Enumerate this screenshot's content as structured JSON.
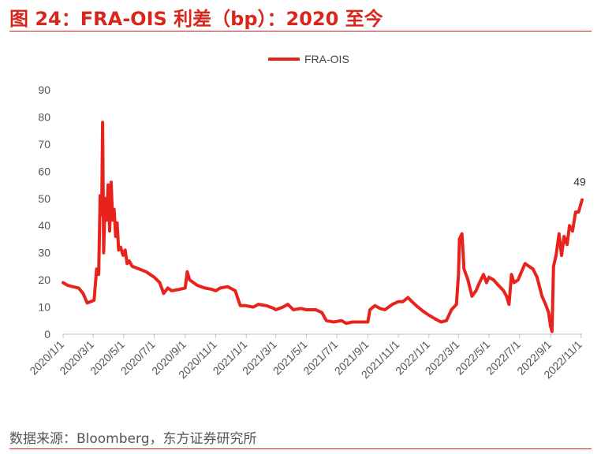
{
  "title": "图 24：FRA-OIS 利差（bp）：2020 至今",
  "source": "数据来源：Bloomberg，东方证券研究所",
  "chart_data": {
    "type": "line",
    "title": "图 24：FRA-OIS 利差（bp）：2020 至今",
    "ylim": [
      0,
      90
    ],
    "yticks": [
      0,
      10,
      20,
      30,
      40,
      50,
      60,
      70,
      80,
      90
    ],
    "xticks": [
      "2020/1/1",
      "2020/3/1",
      "2020/5/1",
      "2020/7/1",
      "2020/9/1",
      "2020/11/1",
      "2021/1/1",
      "2021/3/1",
      "2021/5/1",
      "2021/7/1",
      "2021/9/1",
      "2021/11/1",
      "2022/1/1",
      "2022/3/1",
      "2022/5/1",
      "2022/7/1",
      "2022/9/1",
      "2022/11/1"
    ],
    "legend": {
      "position": "top-center",
      "entries": [
        "FRA-OIS"
      ]
    },
    "series_color": "#e8231b",
    "annotation": {
      "text": "49",
      "x": "2022/11/3",
      "y": 49.5
    },
    "series": [
      {
        "name": "FRA-OIS",
        "points": [
          [
            "2020/1/1",
            19
          ],
          [
            "2020/1/10",
            18
          ],
          [
            "2020/1/20",
            17.5
          ],
          [
            "2020/2/1",
            17
          ],
          [
            "2020/2/10",
            15
          ],
          [
            "2020/2/18",
            11.5
          ],
          [
            "2020/2/25",
            12
          ],
          [
            "2020/3/3",
            12.5
          ],
          [
            "2020/3/8",
            24
          ],
          [
            "2020/3/12",
            22
          ],
          [
            "2020/3/15",
            51
          ],
          [
            "2020/3/18",
            44
          ],
          [
            "2020/3/20",
            78
          ],
          [
            "2020/3/22",
            30
          ],
          [
            "2020/3/25",
            50
          ],
          [
            "2020/3/28",
            42
          ],
          [
            "2020/3/31",
            55
          ],
          [
            "2020/4/3",
            38
          ],
          [
            "2020/4/6",
            56
          ],
          [
            "2020/4/9",
            42
          ],
          [
            "2020/4/12",
            46
          ],
          [
            "2020/4/15",
            36
          ],
          [
            "2020/4/18",
            41
          ],
          [
            "2020/4/21",
            31
          ],
          [
            "2020/4/25",
            32
          ],
          [
            "2020/4/30",
            29
          ],
          [
            "2020/5/4",
            31
          ],
          [
            "2020/5/8",
            26
          ],
          [
            "2020/5/12",
            27
          ],
          [
            "2020/5/18",
            25
          ],
          [
            "2020/6/1",
            24
          ],
          [
            "2020/6/15",
            23
          ],
          [
            "2020/7/1",
            21
          ],
          [
            "2020/7/12",
            19
          ],
          [
            "2020/7/20",
            15
          ],
          [
            "2020/7/28",
            17
          ],
          [
            "2020/8/5",
            16
          ],
          [
            "2020/8/20",
            16.5
          ],
          [
            "2020/9/1",
            17
          ],
          [
            "2020/9/5",
            23
          ],
          [
            "2020/9/10",
            20
          ],
          [
            "2020/9/25",
            18
          ],
          [
            "2020/10/10",
            17
          ],
          [
            "2020/10/25",
            16.5
          ],
          [
            "2020/11/1",
            16
          ],
          [
            "2020/11/10",
            17
          ],
          [
            "2020/11/25",
            17.5
          ],
          [
            "2020/12/10",
            16
          ],
          [
            "2020/12/20",
            10.5
          ],
          [
            "2020/12/31",
            10.5
          ],
          [
            "2021/1/15",
            10
          ],
          [
            "2021/1/25",
            11
          ],
          [
            "2021/2/10",
            10.5
          ],
          [
            "2021/2/25",
            9.5
          ],
          [
            "2021/3/1",
            9
          ],
          [
            "2021/3/15",
            10
          ],
          [
            "2021/3/25",
            11
          ],
          [
            "2021/4/5",
            9
          ],
          [
            "2021/4/20",
            9.5
          ],
          [
            "2021/5/1",
            9
          ],
          [
            "2021/5/20",
            9
          ],
          [
            "2021/6/1",
            8
          ],
          [
            "2021/6/10",
            5
          ],
          [
            "2021/6/25",
            4.5
          ],
          [
            "2021/7/10",
            5
          ],
          [
            "2021/7/20",
            4
          ],
          [
            "2021/8/1",
            4.5
          ],
          [
            "2021/8/20",
            4.5
          ],
          [
            "2021/9/1",
            4.5
          ],
          [
            "2021/9/5",
            9
          ],
          [
            "2021/9/15",
            10.5
          ],
          [
            "2021/9/25",
            9.5
          ],
          [
            "2021/10/5",
            9
          ],
          [
            "2021/10/20",
            11
          ],
          [
            "2021/11/1",
            12
          ],
          [
            "2021/11/10",
            12
          ],
          [
            "2021/11/20",
            13.5
          ],
          [
            "2021/11/28",
            12
          ],
          [
            "2021/12/10",
            10
          ],
          [
            "2021/12/20",
            8.5
          ],
          [
            "2022/1/1",
            7
          ],
          [
            "2022/1/15",
            5.5
          ],
          [
            "2022/1/25",
            4.5
          ],
          [
            "2022/2/5",
            5
          ],
          [
            "2022/2/15",
            9
          ],
          [
            "2022/2/25",
            11
          ],
          [
            "2022/3/1",
            22
          ],
          [
            "2022/3/3",
            35
          ],
          [
            "2022/3/8",
            37
          ],
          [
            "2022/3/12",
            24
          ],
          [
            "2022/3/20",
            20
          ],
          [
            "2022/3/28",
            14
          ],
          [
            "2022/4/5",
            16
          ],
          [
            "2022/4/12",
            19
          ],
          [
            "2022/4/20",
            22
          ],
          [
            "2022/4/26",
            19
          ],
          [
            "2022/5/1",
            21
          ],
          [
            "2022/5/10",
            20
          ],
          [
            "2022/5/20",
            18
          ],
          [
            "2022/5/30",
            16
          ],
          [
            "2022/6/5",
            14
          ],
          [
            "2022/6/10",
            11
          ],
          [
            "2022/6/15",
            22
          ],
          [
            "2022/6/20",
            19
          ],
          [
            "2022/6/28",
            20
          ],
          [
            "2022/7/5",
            23
          ],
          [
            "2022/7/12",
            26
          ],
          [
            "2022/7/20",
            25
          ],
          [
            "2022/7/28",
            24
          ],
          [
            "2022/8/5",
            21
          ],
          [
            "2022/8/15",
            14
          ],
          [
            "2022/8/22",
            11
          ],
          [
            "2022/8/28",
            8
          ],
          [
            "2022/9/1",
            3
          ],
          [
            "2022/9/4",
            1
          ],
          [
            "2022/9/7",
            25
          ],
          [
            "2022/9/12",
            29
          ],
          [
            "2022/9/18",
            37
          ],
          [
            "2022/9/23",
            29
          ],
          [
            "2022/9/28",
            36
          ],
          [
            "2022/10/4",
            33
          ],
          [
            "2022/10/9",
            40
          ],
          [
            "2022/10/15",
            38
          ],
          [
            "2022/10/21",
            45
          ],
          [
            "2022/10/27",
            45
          ],
          [
            "2022/11/3",
            49.5
          ]
        ]
      }
    ]
  }
}
